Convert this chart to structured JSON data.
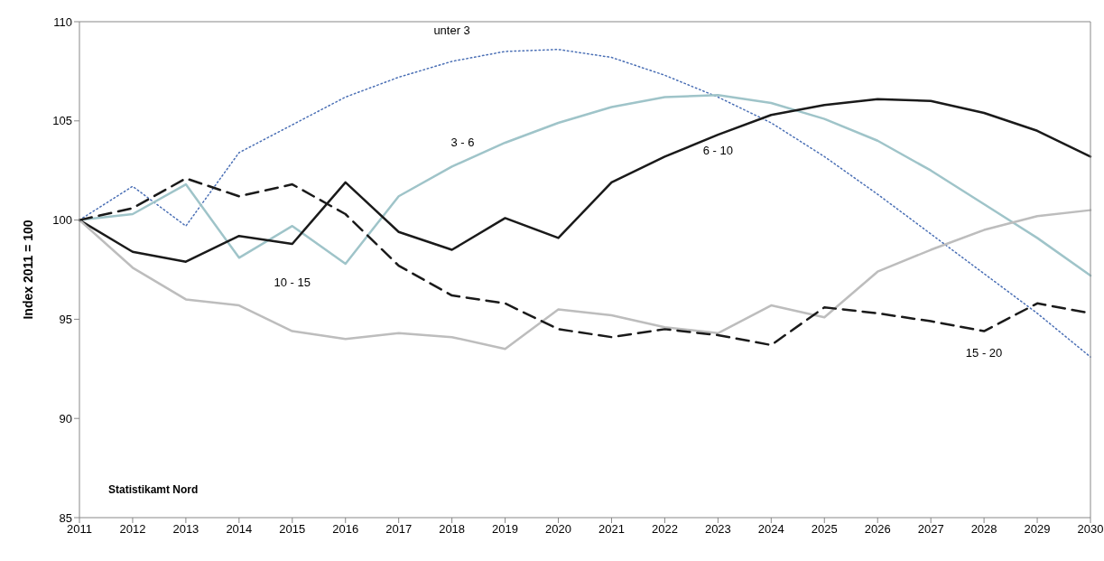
{
  "chart_data": {
    "type": "line",
    "ylabel": "Index 2011 = 100",
    "categories": [
      "2011",
      "2012",
      "2013",
      "2014",
      "2015",
      "2016",
      "2017",
      "2018",
      "2019",
      "2020",
      "2021",
      "2022",
      "2023",
      "2024",
      "2025",
      "2026",
      "2027",
      "2028",
      "2029",
      "2030"
    ],
    "series": [
      {
        "name": "unter 3",
        "color": "#4a6fb5",
        "line_style": "dotted",
        "values": [
          100,
          101.7,
          99.7,
          103.4,
          104.8,
          106.2,
          107.2,
          108.0,
          108.5,
          108.6,
          108.2,
          107.3,
          106.2,
          104.9,
          103.2,
          101.3,
          99.3,
          97.3,
          95.3,
          93.1
        ]
      },
      {
        "name": "3 - 6",
        "color": "#9fc4c9",
        "line_style": "solid",
        "values": [
          100,
          100.3,
          101.8,
          98.1,
          99.7,
          97.8,
          101.2,
          102.7,
          103.9,
          104.9,
          105.7,
          106.2,
          106.3,
          105.9,
          105.1,
          104.0,
          102.5,
          100.8,
          99.1,
          97.2
        ]
      },
      {
        "name": "6 - 10",
        "color": "#1a1a1a",
        "line_style": "solid",
        "values": [
          100,
          98.4,
          97.9,
          99.2,
          98.8,
          101.9,
          99.4,
          98.5,
          100.1,
          99.1,
          101.9,
          103.2,
          104.3,
          105.3,
          105.8,
          106.1,
          106.0,
          105.4,
          104.5,
          103.2
        ]
      },
      {
        "name": "10 - 15",
        "color": "#bdbdbd",
        "line_style": "solid",
        "values": [
          100,
          97.6,
          96.0,
          95.7,
          94.4,
          94.0,
          94.3,
          94.1,
          93.5,
          95.5,
          95.2,
          94.6,
          94.3,
          95.7,
          95.1,
          97.4,
          98.5,
          99.5,
          100.2,
          100.5
        ]
      },
      {
        "name": "15 - 20",
        "color": "#1a1a1a",
        "line_style": "dashed",
        "values": [
          100,
          100.6,
          102.1,
          101.2,
          101.8,
          100.3,
          97.7,
          96.2,
          95.8,
          94.5,
          94.1,
          94.5,
          94.2,
          93.7,
          95.6,
          95.3,
          94.9,
          94.4,
          95.8,
          95.3
        ]
      }
    ],
    "ylim": [
      85,
      110
    ],
    "yticks": [
      85,
      90,
      95,
      100,
      105,
      110
    ],
    "marker": "none",
    "annotations": [
      "Statistikamt Nord"
    ]
  }
}
